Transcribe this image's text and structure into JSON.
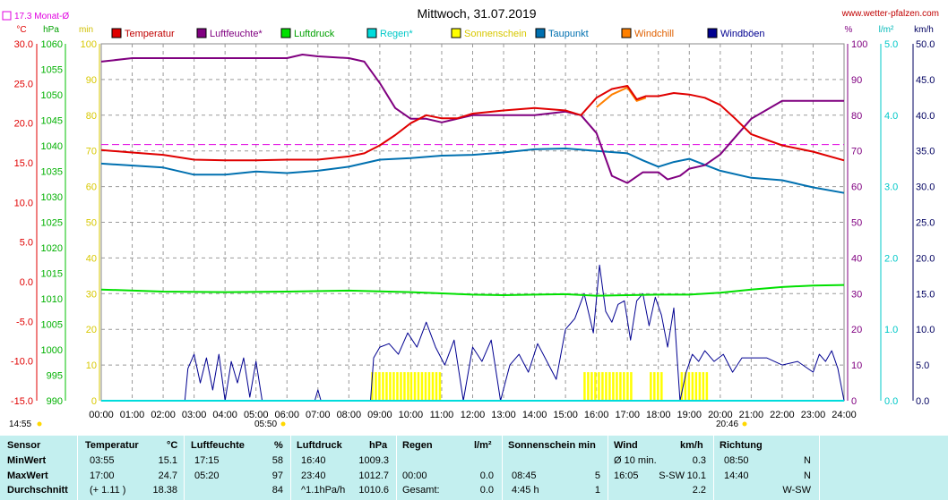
{
  "header": {
    "title": "Mittwoch, 31.07.2019",
    "url": "www.wetter-pfalzen.com",
    "avg_label": "17.3 Monat-Ø",
    "start_time": "14:55",
    "sunrise_time": "05:50",
    "sunset_time": "20:46"
  },
  "colors": {
    "temperature": "#e00000",
    "humidity": "#800080",
    "pressure": "#00e000",
    "rain": "#00dcdc",
    "sunshine": "#ffff00",
    "dewpoint": "#0070b0",
    "windchill": "#ff8000",
    "gusts": "#000090"
  },
  "chart_data": {
    "type": "line",
    "title": "Mittwoch, 31.07.2019",
    "x_ticks": [
      "00:00",
      "01:00",
      "02:00",
      "03:00",
      "04:00",
      "05:00",
      "06:00",
      "07:00",
      "08:00",
      "09:00",
      "10:00",
      "11:00",
      "12:00",
      "13:00",
      "14:00",
      "15:00",
      "16:00",
      "17:00",
      "18:00",
      "19:00",
      "20:00",
      "21:00",
      "22:00",
      "23:00",
      "24:00"
    ],
    "axes": {
      "temp": {
        "unit": "°C",
        "range": [
          -15,
          30
        ],
        "ticks": [
          "30.0",
          "25.0",
          "20.0",
          "15.0",
          "10.0",
          "5.0",
          "0.0",
          "-5.0",
          "-10.0",
          "-15.0"
        ]
      },
      "pressure": {
        "unit": "hPa",
        "range": [
          990,
          1060
        ],
        "ticks": [
          "1060",
          "1055",
          "1050",
          "1045",
          "1040",
          "1035",
          "1030",
          "1025",
          "1020",
          "1015",
          "1010",
          "1005",
          "1000",
          "995",
          "990"
        ]
      },
      "minutes": {
        "unit": "min",
        "range": [
          0,
          100
        ],
        "ticks": [
          "100",
          "90",
          "80",
          "70",
          "60",
          "50",
          "40",
          "30",
          "20",
          "10",
          "0"
        ]
      },
      "humidity": {
        "unit": "%",
        "range": [
          0,
          100
        ],
        "ticks": [
          "100",
          "90",
          "80",
          "70",
          "60",
          "50",
          "40",
          "30",
          "20",
          "10",
          "0"
        ]
      },
      "rain": {
        "unit": "l/m²",
        "range": [
          0,
          5
        ],
        "ticks": [
          "5.0",
          "4.0",
          "3.0",
          "2.0",
          "1.0",
          "0.0"
        ]
      },
      "wind": {
        "unit": "km/h",
        "range": [
          0,
          50
        ],
        "ticks": [
          "50.0",
          "45.0",
          "40.0",
          "35.0",
          "30.0",
          "25.0",
          "20.0",
          "15.0",
          "10.0",
          "5.0",
          "0.0"
        ]
      }
    },
    "legend": [
      "Temperatur",
      "Luftfeuchte*",
      "Luftdruck",
      "Regen*",
      "Sonnenschein",
      "Taupunkt",
      "Windchill",
      "Windböen"
    ],
    "reference_line": {
      "name": "17.3 Monat-Ø",
      "value": 17.3
    },
    "series": [
      {
        "name": "Temperatur",
        "x": [
          0,
          1,
          2,
          3,
          4,
          5,
          6,
          7,
          8,
          8.5,
          9,
          9.5,
          10,
          10.5,
          11,
          11.5,
          12,
          12.5,
          13,
          14,
          15,
          15.5,
          16,
          16.5,
          17,
          17.3,
          17.6,
          18,
          18.5,
          19,
          19.5,
          20,
          20.5,
          21,
          22,
          23,
          24
        ],
        "y": [
          16.6,
          16.3,
          16.0,
          15.4,
          15.3,
          15.3,
          15.4,
          15.4,
          15.8,
          16.2,
          17.2,
          18.5,
          20.0,
          21.0,
          20.6,
          20.6,
          21.2,
          21.4,
          21.6,
          21.9,
          21.6,
          21.0,
          23.2,
          24.3,
          24.7,
          23.0,
          23.4,
          23.4,
          23.8,
          23.6,
          23.2,
          22.3,
          20.5,
          18.6,
          17.2,
          16.4,
          15.3
        ]
      },
      {
        "name": "Luftfeuchte*",
        "x": [
          0,
          1,
          2,
          3,
          4,
          5,
          6,
          6.5,
          7,
          8,
          8.5,
          9,
          9.5,
          10,
          10.5,
          11,
          11.5,
          12,
          12.5,
          13,
          14,
          15,
          15.5,
          16,
          16.5,
          17,
          17.5,
          18,
          18.3,
          18.7,
          19,
          19.5,
          20,
          20.5,
          21,
          22,
          23,
          24
        ],
        "y": [
          95,
          96,
          96,
          96,
          96,
          96,
          96,
          97,
          96.5,
          96,
          95,
          89,
          82,
          79,
          79,
          78,
          79,
          80,
          80,
          80,
          80,
          81,
          80,
          75,
          63,
          61,
          64,
          64,
          62,
          63,
          65,
          66,
          69,
          74,
          79,
          84,
          84,
          84
        ]
      },
      {
        "name": "Luftdruck",
        "x": [
          0,
          2,
          4,
          6,
          8,
          10,
          12,
          13,
          14,
          15,
          16,
          17,
          18,
          19,
          20,
          21,
          22,
          23,
          24
        ],
        "y": [
          1011.8,
          1011.4,
          1011.3,
          1011.4,
          1011.6,
          1011.3,
          1010.8,
          1010.7,
          1010.8,
          1010.9,
          1010.6,
          1010.7,
          1010.8,
          1010.8,
          1011.2,
          1011.8,
          1012.3,
          1012.6,
          1012.7
        ]
      },
      {
        "name": "Regen*",
        "x": [
          0,
          24
        ],
        "y": [
          0,
          0
        ]
      },
      {
        "name": "Taupunkt",
        "x": [
          0,
          2,
          3,
          4,
          5,
          6,
          7,
          8,
          9,
          10,
          11,
          12,
          13,
          14,
          15,
          16,
          17,
          17.5,
          18,
          18.5,
          19,
          20,
          21,
          22,
          23,
          24
        ],
        "y": [
          14.9,
          14.4,
          13.5,
          13.5,
          13.9,
          13.7,
          14.0,
          14.5,
          15.4,
          15.6,
          15.9,
          16.0,
          16.3,
          16.7,
          16.8,
          16.5,
          16.2,
          15.3,
          14.5,
          15.1,
          15.5,
          14.0,
          13.1,
          12.8,
          11.9,
          11.2
        ]
      },
      {
        "name": "Windchill",
        "x": [
          16,
          16.5,
          17,
          17.3,
          17.6
        ],
        "y": [
          22.0,
          23.6,
          24.5,
          22.8,
          23.2
        ]
      },
      {
        "name": "Windböen",
        "x": [
          0,
          2.7,
          2.8,
          3.0,
          3.2,
          3.4,
          3.6,
          3.8,
          4.0,
          4.2,
          4.4,
          4.6,
          4.8,
          5.0,
          5.2,
          6.8,
          6.9,
          7.0,
          7.1,
          8.7,
          8.8,
          9.0,
          9.3,
          9.6,
          9.9,
          10.2,
          10.5,
          10.8,
          11.1,
          11.4,
          11.7,
          12.0,
          12.3,
          12.6,
          12.9,
          13.2,
          13.5,
          13.8,
          14.1,
          14.4,
          14.7,
          15.0,
          15.3,
          15.6,
          15.9,
          16.1,
          16.3,
          16.5,
          16.7,
          16.9,
          17.1,
          17.3,
          17.5,
          17.7,
          17.9,
          18.1,
          18.3,
          18.5,
          18.7,
          18.9,
          19.1,
          19.3,
          19.5,
          19.8,
          20.1,
          20.4,
          20.7,
          21.0,
          21.5,
          22.0,
          22.5,
          23.0,
          23.2,
          23.4,
          23.6,
          23.8,
          24.0
        ],
        "y": [
          0,
          0,
          4.5,
          6.5,
          2.5,
          6.0,
          1.5,
          6.5,
          0,
          5.5,
          2.5,
          6.0,
          0.5,
          5.5,
          0,
          0,
          0,
          1.5,
          0,
          0,
          6.0,
          7.5,
          8.0,
          6.5,
          9.5,
          7.5,
          11.0,
          7.5,
          5.0,
          8.5,
          0,
          7.5,
          5.5,
          8.5,
          0,
          5.0,
          6.5,
          4.0,
          8.0,
          5.5,
          3.0,
          10.0,
          11.5,
          15.0,
          9.5,
          19.0,
          12.5,
          11.0,
          13.5,
          14.0,
          8.5,
          14.0,
          15.0,
          10.5,
          14.5,
          12.0,
          7.5,
          13.0,
          0,
          4.0,
          6.5,
          5.5,
          7.0,
          5.5,
          6.5,
          4.0,
          6.0,
          6.0,
          6.0,
          5.0,
          5.5,
          4.0,
          6.5,
          5.5,
          7.0,
          4.5,
          0
        ]
      },
      {
        "name": "Sonnenschein",
        "bands": [
          [
            8.72,
            9.88
          ],
          [
            9.98,
            10.95
          ],
          [
            15.58,
            17.15
          ],
          [
            17.72,
            18.18
          ],
          [
            18.72,
            19.58
          ]
        ]
      }
    ]
  },
  "stats": {
    "headers": {
      "sensor": "Sensor",
      "temp": "Temperatur",
      "temp_unit": "°C",
      "hum": "Luftfeuchte",
      "hum_unit": "%",
      "press": "Luftdruck",
      "press_unit": "hPa",
      "rain": "Regen",
      "rain_unit": "l/m²",
      "sun": "Sonnenschein min",
      "wind": "Wind",
      "wind_unit": "km/h",
      "dir": "Richtung"
    },
    "rows": [
      {
        "label": "MinWert",
        "temp_time": "03:55",
        "temp_val": "15.1",
        "hum_time": "17:15",
        "hum_val": "58",
        "press_time": "16:40",
        "press_val": "1009.3",
        "rain_time": "",
        "rain_val": "",
        "sun_time": "",
        "sun_val": "",
        "wind_time": "Ø 10 min.",
        "wind_dir": "",
        "wind_val": "0.3",
        "dir_time": "08:50",
        "dir_val": "N"
      },
      {
        "label": "MaxWert",
        "temp_time": "17:00",
        "temp_val": "24.7",
        "hum_time": "05:20",
        "hum_val": "97",
        "press_time": "23:40",
        "press_val": "1012.7",
        "rain_time": "00:00",
        "rain_val": "0.0",
        "sun_time": "08:45",
        "sun_val": "5",
        "wind_time": "16:05",
        "wind_dir": "S-SW",
        "wind_val": "10.1",
        "dir_time": "14:40",
        "dir_val": "N"
      },
      {
        "label": "Durchschnitt",
        "temp_time": "(+ 1.11 )",
        "temp_val": "18.38",
        "hum_time": "",
        "hum_val": "84",
        "press_time": "^1.1hPa/h",
        "press_val": "1010.6",
        "rain_time": "Gesamt:",
        "rain_val": "0.0",
        "sun_time": "4:45 h",
        "sun_val": "1",
        "wind_time": "",
        "wind_dir": "",
        "wind_val": "2.2",
        "dir_time": "",
        "dir_val": "W-SW"
      }
    ]
  }
}
